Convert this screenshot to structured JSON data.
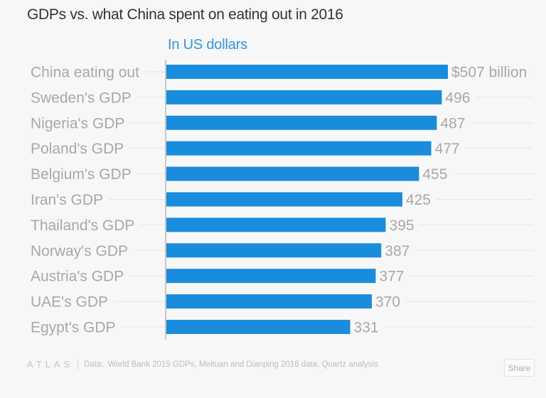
{
  "chart_data": {
    "type": "bar",
    "orientation": "horizontal",
    "title": "GDPs vs. what China spent on eating out in 2016",
    "subtitle": "In US dollars",
    "categories": [
      "China eating out",
      "Sweden's GDP",
      "Nigeria's GDP",
      "Poland's GDP",
      "Belgium's GDP",
      "Iran's GDP",
      "Thailand's GDP",
      "Norway's GDP",
      "Austria's GDP",
      "UAE's GDP",
      "Egypt's GDP"
    ],
    "values": [
      507,
      496,
      487,
      477,
      455,
      425,
      395,
      387,
      377,
      370,
      331
    ],
    "value_labels": [
      "$507 billion",
      "496",
      "487",
      "477",
      "455",
      "425",
      "395",
      "387",
      "377",
      "370",
      "331"
    ],
    "unit": "billion USD",
    "xlabel": "",
    "ylabel": "",
    "xlim": [
      0,
      507
    ],
    "grid": true,
    "legend": "none",
    "bar_color": "#1a8cdc"
  },
  "footer": {
    "brand": "ATLAS",
    "source_label": "Data:",
    "source_text": "World Bank 2015 GDPs, Meituan and Dianping 2016 data, Quartz analysis",
    "share_label": "Share"
  },
  "colors": {
    "title": "#333333",
    "subtitle": "#2e97dc",
    "labels": "#a8a8a8",
    "bar": "#1a8cdc",
    "background": "#f7f7f7"
  }
}
